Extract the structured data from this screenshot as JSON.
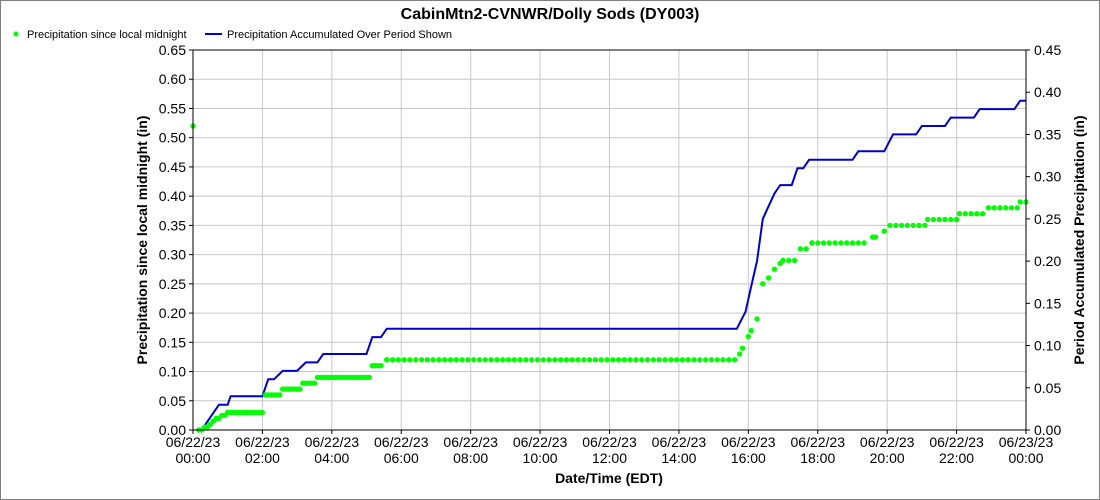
{
  "chart_data": {
    "type": "line",
    "title": "CabinMtn2-CVNWR/Dolly Sods (DY003)",
    "xlabel": "Date/Time (EDT)",
    "ylabel": "Precipitation since local midnight (in)",
    "y2label": "Period Accumulated Precipitation (in)",
    "ylim": [
      0,
      0.65
    ],
    "y2lim": [
      0,
      0.45
    ],
    "xlim_hours": [
      0,
      24
    ],
    "grid": true,
    "legend_position": "top-left",
    "x_ticks": [
      {
        "date": "06/22/23",
        "time": "00:00"
      },
      {
        "date": "06/22/23",
        "time": "02:00"
      },
      {
        "date": "06/22/23",
        "time": "04:00"
      },
      {
        "date": "06/22/23",
        "time": "06:00"
      },
      {
        "date": "06/22/23",
        "time": "08:00"
      },
      {
        "date": "06/22/23",
        "time": "10:00"
      },
      {
        "date": "06/22/23",
        "time": "12:00"
      },
      {
        "date": "06/22/23",
        "time": "14:00"
      },
      {
        "date": "06/22/23",
        "time": "16:00"
      },
      {
        "date": "06/22/23",
        "time": "18:00"
      },
      {
        "date": "06/22/23",
        "time": "20:00"
      },
      {
        "date": "06/22/23",
        "time": "22:00"
      },
      {
        "date": "06/23/23",
        "time": "00:00"
      }
    ],
    "y_ticks": [
      "0.00",
      "0.05",
      "0.10",
      "0.15",
      "0.20",
      "0.25",
      "0.30",
      "0.35",
      "0.40",
      "0.45",
      "0.50",
      "0.55",
      "0.60",
      "0.65"
    ],
    "y2_ticks": [
      "0.00",
      "0.05",
      "0.10",
      "0.15",
      "0.20",
      "0.25",
      "0.30",
      "0.35",
      "0.40",
      "0.45"
    ],
    "series": [
      {
        "name": "Precipitation since local midnight",
        "color": "#00ff00",
        "axis": "left",
        "style": "points",
        "point_steps": [
          [
            0.0,
            0.52
          ],
          [
            0.083,
            0.0
          ],
          [
            0.167,
            0.0
          ],
          [
            0.25,
            0.0
          ],
          [
            0.333,
            0.0
          ],
          [
            0.417,
            0.01
          ],
          [
            0.5,
            0.01
          ],
          [
            0.583,
            0.01
          ],
          [
            0.667,
            0.02
          ],
          [
            0.75,
            0.03
          ],
          [
            0.833,
            0.03
          ],
          [
            1.0,
            0.03
          ],
          [
            2.0,
            0.04
          ],
          [
            2.083,
            0.06
          ],
          [
            2.5,
            0.06
          ],
          [
            2.583,
            0.07
          ],
          [
            3.083,
            0.07
          ],
          [
            3.167,
            0.08
          ],
          [
            3.5,
            0.08
          ],
          [
            3.583,
            0.09
          ],
          [
            5.083,
            0.09
          ],
          [
            5.167,
            0.11
          ],
          [
            5.5,
            0.11
          ],
          [
            5.583,
            0.12
          ],
          [
            15.667,
            0.12
          ],
          [
            15.75,
            0.13
          ],
          [
            15.833,
            0.14
          ],
          [
            16.0,
            0.16
          ],
          [
            16.25,
            0.19
          ],
          [
            16.167,
            0.19
          ]
        ],
        "values_5min": [
          [
            0.0,
            0.52
          ],
          [
            0.167,
            0.0
          ],
          [
            0.25,
            0.0
          ],
          [
            0.333,
            0.005
          ],
          [
            0.417,
            0.005
          ],
          [
            0.5,
            0.01
          ],
          [
            0.583,
            0.015
          ],
          [
            0.667,
            0.02
          ],
          [
            0.75,
            0.02
          ],
          [
            0.833,
            0.025
          ],
          [
            0.917,
            0.025
          ],
          [
            1.0,
            0.03
          ],
          [
            1.083,
            0.03
          ],
          [
            1.167,
            0.03
          ],
          [
            1.25,
            0.03
          ],
          [
            1.333,
            0.03
          ],
          [
            1.417,
            0.03
          ],
          [
            1.5,
            0.03
          ],
          [
            1.583,
            0.03
          ],
          [
            1.667,
            0.03
          ],
          [
            1.75,
            0.03
          ],
          [
            1.833,
            0.03
          ],
          [
            1.917,
            0.03
          ],
          [
            2.0,
            0.03
          ],
          [
            2.083,
            0.06
          ],
          [
            2.167,
            0.06
          ],
          [
            2.25,
            0.06
          ],
          [
            2.333,
            0.06
          ],
          [
            2.417,
            0.06
          ],
          [
            2.5,
            0.06
          ],
          [
            2.583,
            0.07
          ],
          [
            2.667,
            0.07
          ],
          [
            2.75,
            0.07
          ],
          [
            2.833,
            0.07
          ],
          [
            2.917,
            0.07
          ],
          [
            3.0,
            0.07
          ],
          [
            3.083,
            0.07
          ],
          [
            3.167,
            0.08
          ],
          [
            3.25,
            0.08
          ],
          [
            3.333,
            0.08
          ],
          [
            3.417,
            0.08
          ],
          [
            3.5,
            0.08
          ],
          [
            3.583,
            0.09
          ],
          [
            3.667,
            0.09
          ],
          [
            3.75,
            0.09
          ],
          [
            3.833,
            0.09
          ],
          [
            3.917,
            0.09
          ],
          [
            4.0,
            0.09
          ],
          [
            4.083,
            0.09
          ],
          [
            4.167,
            0.09
          ],
          [
            4.25,
            0.09
          ],
          [
            4.333,
            0.09
          ],
          [
            4.417,
            0.09
          ],
          [
            4.5,
            0.09
          ],
          [
            4.583,
            0.09
          ],
          [
            4.667,
            0.09
          ],
          [
            4.75,
            0.09
          ],
          [
            4.833,
            0.09
          ],
          [
            4.917,
            0.09
          ],
          [
            5.0,
            0.09
          ],
          [
            5.083,
            0.09
          ],
          [
            5.167,
            0.11
          ],
          [
            5.25,
            0.11
          ],
          [
            5.333,
            0.11
          ],
          [
            5.417,
            0.11
          ],
          [
            5.583,
            0.12
          ],
          [
            15.75,
            0.13
          ],
          [
            15.833,
            0.14
          ],
          [
            16.0,
            0.16
          ],
          [
            16.083,
            0.17
          ],
          [
            16.25,
            0.19
          ],
          [
            16.417,
            0.25
          ],
          [
            16.583,
            0.26
          ],
          [
            16.75,
            0.275
          ],
          [
            16.917,
            0.285
          ],
          [
            17.0,
            0.29
          ],
          [
            17.167,
            0.29
          ],
          [
            17.333,
            0.29
          ],
          [
            17.5,
            0.31
          ],
          [
            17.667,
            0.31
          ],
          [
            17.833,
            0.32
          ],
          [
            19.583,
            0.33
          ],
          [
            19.917,
            0.34
          ],
          [
            20.083,
            0.35
          ],
          [
            20.25,
            0.35
          ],
          [
            20.417,
            0.35
          ],
          [
            20.583,
            0.35
          ],
          [
            20.75,
            0.35
          ],
          [
            20.917,
            0.35
          ],
          [
            21.083,
            0.35
          ],
          [
            21.167,
            0.36
          ],
          [
            21.333,
            0.36
          ],
          [
            21.5,
            0.36
          ],
          [
            21.667,
            0.36
          ],
          [
            21.833,
            0.36
          ],
          [
            22.0,
            0.36
          ],
          [
            22.083,
            0.37
          ],
          [
            22.25,
            0.37
          ],
          [
            22.417,
            0.37
          ],
          [
            22.583,
            0.37
          ],
          [
            22.75,
            0.37
          ],
          [
            22.917,
            0.38
          ],
          [
            23.083,
            0.38
          ],
          [
            23.25,
            0.38
          ],
          [
            23.417,
            0.38
          ],
          [
            23.583,
            0.38
          ],
          [
            23.75,
            0.38
          ],
          [
            23.833,
            0.39
          ],
          [
            24.0,
            0.39
          ]
        ],
        "segments": [
          {
            "from": 5.583,
            "to": 15.667,
            "step": 0.167,
            "value": 0.12
          },
          {
            "from": 17.833,
            "to": 19.5,
            "step": 0.167,
            "value": 0.32
          },
          {
            "from": 19.667,
            "to": 19.833,
            "step": 0.167,
            "value": 0.33
          }
        ]
      },
      {
        "name": "Precipitation Accumulated Over Period Shown",
        "color": "#0000cc",
        "axis": "right",
        "style": "line",
        "points": [
          [
            0.167,
            0.0
          ],
          [
            0.25,
            0.0
          ],
          [
            0.583,
            0.02
          ],
          [
            0.75,
            0.03
          ],
          [
            1.0,
            0.03
          ],
          [
            1.083,
            0.04
          ],
          [
            2.0,
            0.04
          ],
          [
            2.167,
            0.06
          ],
          [
            2.333,
            0.06
          ],
          [
            2.583,
            0.07
          ],
          [
            3.0,
            0.07
          ],
          [
            3.25,
            0.08
          ],
          [
            3.583,
            0.08
          ],
          [
            3.75,
            0.09
          ],
          [
            5.0,
            0.09
          ],
          [
            5.167,
            0.11
          ],
          [
            5.417,
            0.11
          ],
          [
            5.583,
            0.12
          ],
          [
            15.667,
            0.12
          ],
          [
            15.917,
            0.14
          ],
          [
            16.083,
            0.17
          ],
          [
            16.25,
            0.2
          ],
          [
            16.417,
            0.25
          ],
          [
            16.583,
            0.265
          ],
          [
            16.75,
            0.28
          ],
          [
            16.917,
            0.29
          ],
          [
            17.25,
            0.29
          ],
          [
            17.417,
            0.31
          ],
          [
            17.583,
            0.31
          ],
          [
            17.75,
            0.32
          ],
          [
            19.0,
            0.32
          ],
          [
            19.167,
            0.33
          ],
          [
            19.917,
            0.33
          ],
          [
            20.167,
            0.35
          ],
          [
            20.833,
            0.35
          ],
          [
            21.0,
            0.36
          ],
          [
            21.667,
            0.36
          ],
          [
            21.833,
            0.37
          ],
          [
            22.5,
            0.37
          ],
          [
            22.667,
            0.38
          ],
          [
            23.667,
            0.38
          ],
          [
            23.833,
            0.39
          ],
          [
            24.0,
            0.39
          ]
        ]
      }
    ]
  }
}
